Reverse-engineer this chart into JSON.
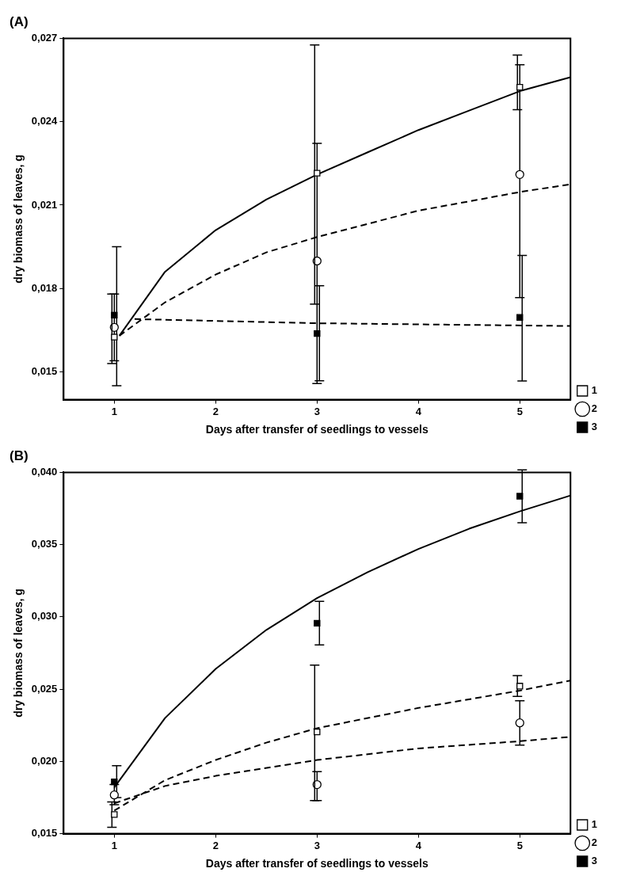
{
  "chart_data": [
    {
      "type": "scatter",
      "title": "(A)",
      "xlabel": "Days after transfer of seedlings to vessels",
      "ylabel": "dry biomass of leaves, g",
      "xlim": [
        0.5,
        5.5
      ],
      "xticks": [
        1,
        2,
        3,
        4,
        5
      ],
      "ylim": [
        0.014,
        0.027
      ],
      "yticks": [
        {
          "value": 0.015,
          "label": "0,015"
        },
        {
          "value": 0.018,
          "label": "0,018"
        },
        {
          "value": 0.021,
          "label": "0,021"
        },
        {
          "value": 0.024,
          "label": "0,024"
        },
        {
          "value": 0.027,
          "label": "0,027"
        }
      ],
      "grid": false,
      "legend": "bottom right",
      "series": [
        {
          "name": "1",
          "marker": "square",
          "color": "#ffffff",
          "x": [
            1,
            3,
            5
          ],
          "values": [
            0.01625,
            0.02215,
            0.02524
          ],
          "errors": [
            [
              0.0153,
              0.0178
            ],
            [
              0.01744,
              0.02676
            ],
            [
              0.02443,
              0.0264
            ]
          ]
        },
        {
          "name": "2",
          "marker": "circle",
          "color": "#ffffff",
          "x": [
            1,
            3,
            5
          ],
          "values": [
            0.0166,
            0.01899,
            0.0221
          ],
          "errors": [
            [
              0.0154,
              0.0178
            ],
            [
              0.01458,
              0.02322
            ],
            [
              0.01767,
              0.02605
            ]
          ]
        },
        {
          "name": "3",
          "marker": "square",
          "color": "#000000",
          "x": [
            1,
            3,
            5
          ],
          "values": [
            0.01704,
            0.01638,
            0.01696
          ],
          "errors": [
            [
              0.0145,
              0.0195
            ],
            [
              0.01468,
              0.0181
            ],
            [
              0.01467,
              0.01919
            ]
          ]
        },
        {
          "type": "line",
          "line_style": "solid",
          "color": "#000000",
          "x": [
            1.05,
            1.5,
            2,
            2.5,
            3,
            3.5,
            4,
            4.5,
            5,
            5.5
          ],
          "values": [
            0.0163,
            0.0186,
            0.0201,
            0.0212,
            0.0221,
            0.0229,
            0.0237,
            0.0244,
            0.0251,
            0.0256
          ]
        },
        {
          "type": "line",
          "line_style": "dashed",
          "color": "#000000",
          "x": [
            1.05,
            1.5,
            2,
            2.5,
            3,
            4,
            5,
            5.5
          ],
          "values": [
            0.0163,
            0.0175,
            0.0185,
            0.0193,
            0.01985,
            0.0208,
            0.02147,
            0.02175
          ]
        },
        {
          "type": "line",
          "line_style": "dashed",
          "color": "#000000",
          "x": [
            1.2,
            3,
            5.5
          ],
          "values": [
            0.0169,
            0.01675,
            0.01665
          ]
        }
      ]
    },
    {
      "type": "scatter",
      "title": "(B)",
      "xlabel": "Days after transfer of seedlings to vessels",
      "ylabel": "dry biomass of leaves, g",
      "xlim": [
        0.5,
        5.5
      ],
      "xticks": [
        1,
        2,
        3,
        4,
        5
      ],
      "ylim": [
        0.015,
        0.04
      ],
      "yticks": [
        {
          "value": 0.015,
          "label": "0,015"
        },
        {
          "value": 0.02,
          "label": "0,020"
        },
        {
          "value": 0.025,
          "label": "0,025"
        },
        {
          "value": 0.03,
          "label": "0,030"
        },
        {
          "value": 0.035,
          "label": "0,035"
        },
        {
          "value": 0.04,
          "label": "0,040"
        }
      ],
      "grid": false,
      "legend": "bottom right",
      "series": [
        {
          "name": "1",
          "marker": "square",
          "color": "#ffffff",
          "x": [
            1,
            3,
            5
          ],
          "values": [
            0.01633,
            0.02204,
            0.02521
          ],
          "errors": [
            [
              0.01545,
              0.0172
            ],
            [
              0.0173,
              0.02667
            ],
            [
              0.0245,
              0.02594
            ]
          ]
        },
        {
          "name": "2",
          "marker": "circle",
          "color": "#ffffff",
          "x": [
            1,
            3,
            5
          ],
          "values": [
            0.01768,
            0.0184,
            0.02267
          ],
          "errors": [
            [
              0.017,
              0.0184
            ],
            [
              0.0173,
              0.0193
            ],
            [
              0.02113,
              0.0242
            ]
          ]
        },
        {
          "name": "3",
          "marker": "square",
          "color": "#000000",
          "x": [
            1,
            3,
            5
          ],
          "values": [
            0.01859,
            0.02956,
            0.03835
          ],
          "errors": [
            [
              0.0175,
              0.0197
            ],
            [
              0.02806,
              0.03108
            ],
            [
              0.03652,
              0.04017
            ]
          ]
        },
        {
          "type": "line",
          "line_style": "solid",
          "color": "#000000",
          "x": [
            1,
            1.5,
            2,
            2.5,
            3,
            3.5,
            4,
            4.5,
            5,
            5.5
          ],
          "values": [
            0.0182,
            0.023,
            0.0264,
            0.0291,
            0.0313,
            0.0331,
            0.0347,
            0.0361,
            0.0373,
            0.0384
          ]
        },
        {
          "type": "line",
          "line_style": "dashed",
          "color": "#000000",
          "x": [
            1,
            1.5,
            2,
            2.5,
            3,
            4,
            5,
            5.5
          ],
          "values": [
            0.0166,
            0.0187,
            0.0201,
            0.0213,
            0.0223,
            0.0237,
            0.0249,
            0.0256
          ]
        },
        {
          "type": "line",
          "line_style": "dashed",
          "color": "#000000",
          "x": [
            1,
            1.5,
            2,
            3,
            4,
            5,
            5.5
          ],
          "values": [
            0.0171,
            0.0183,
            0.019,
            0.0201,
            0.0209,
            0.0214,
            0.0217
          ]
        }
      ]
    }
  ]
}
